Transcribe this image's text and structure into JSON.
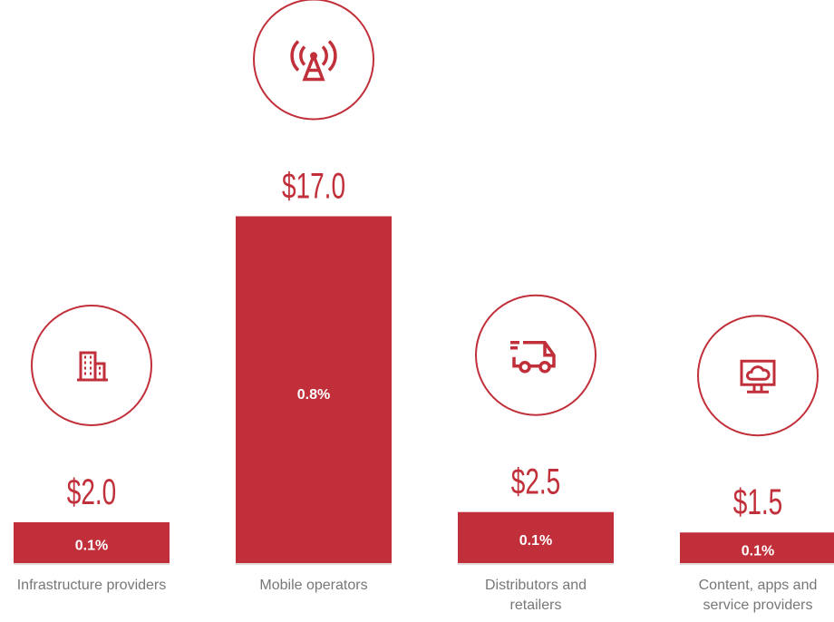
{
  "chart_data": {
    "type": "bar",
    "categories": [
      "Infrastructure providers",
      "Mobile operators",
      "Distributors and retailers",
      "Content, apps and service providers"
    ],
    "values": [
      2.0,
      17.0,
      2.5,
      1.5
    ],
    "value_labels": [
      "$2.0",
      "$17.0",
      "$2.5",
      "$1.5"
    ],
    "shares": [
      0.1,
      0.8,
      0.1,
      0.1
    ],
    "share_labels": [
      "0.1%",
      "0.8%",
      "0.1%",
      "0.1%"
    ],
    "color": "#c1303a"
  }
}
